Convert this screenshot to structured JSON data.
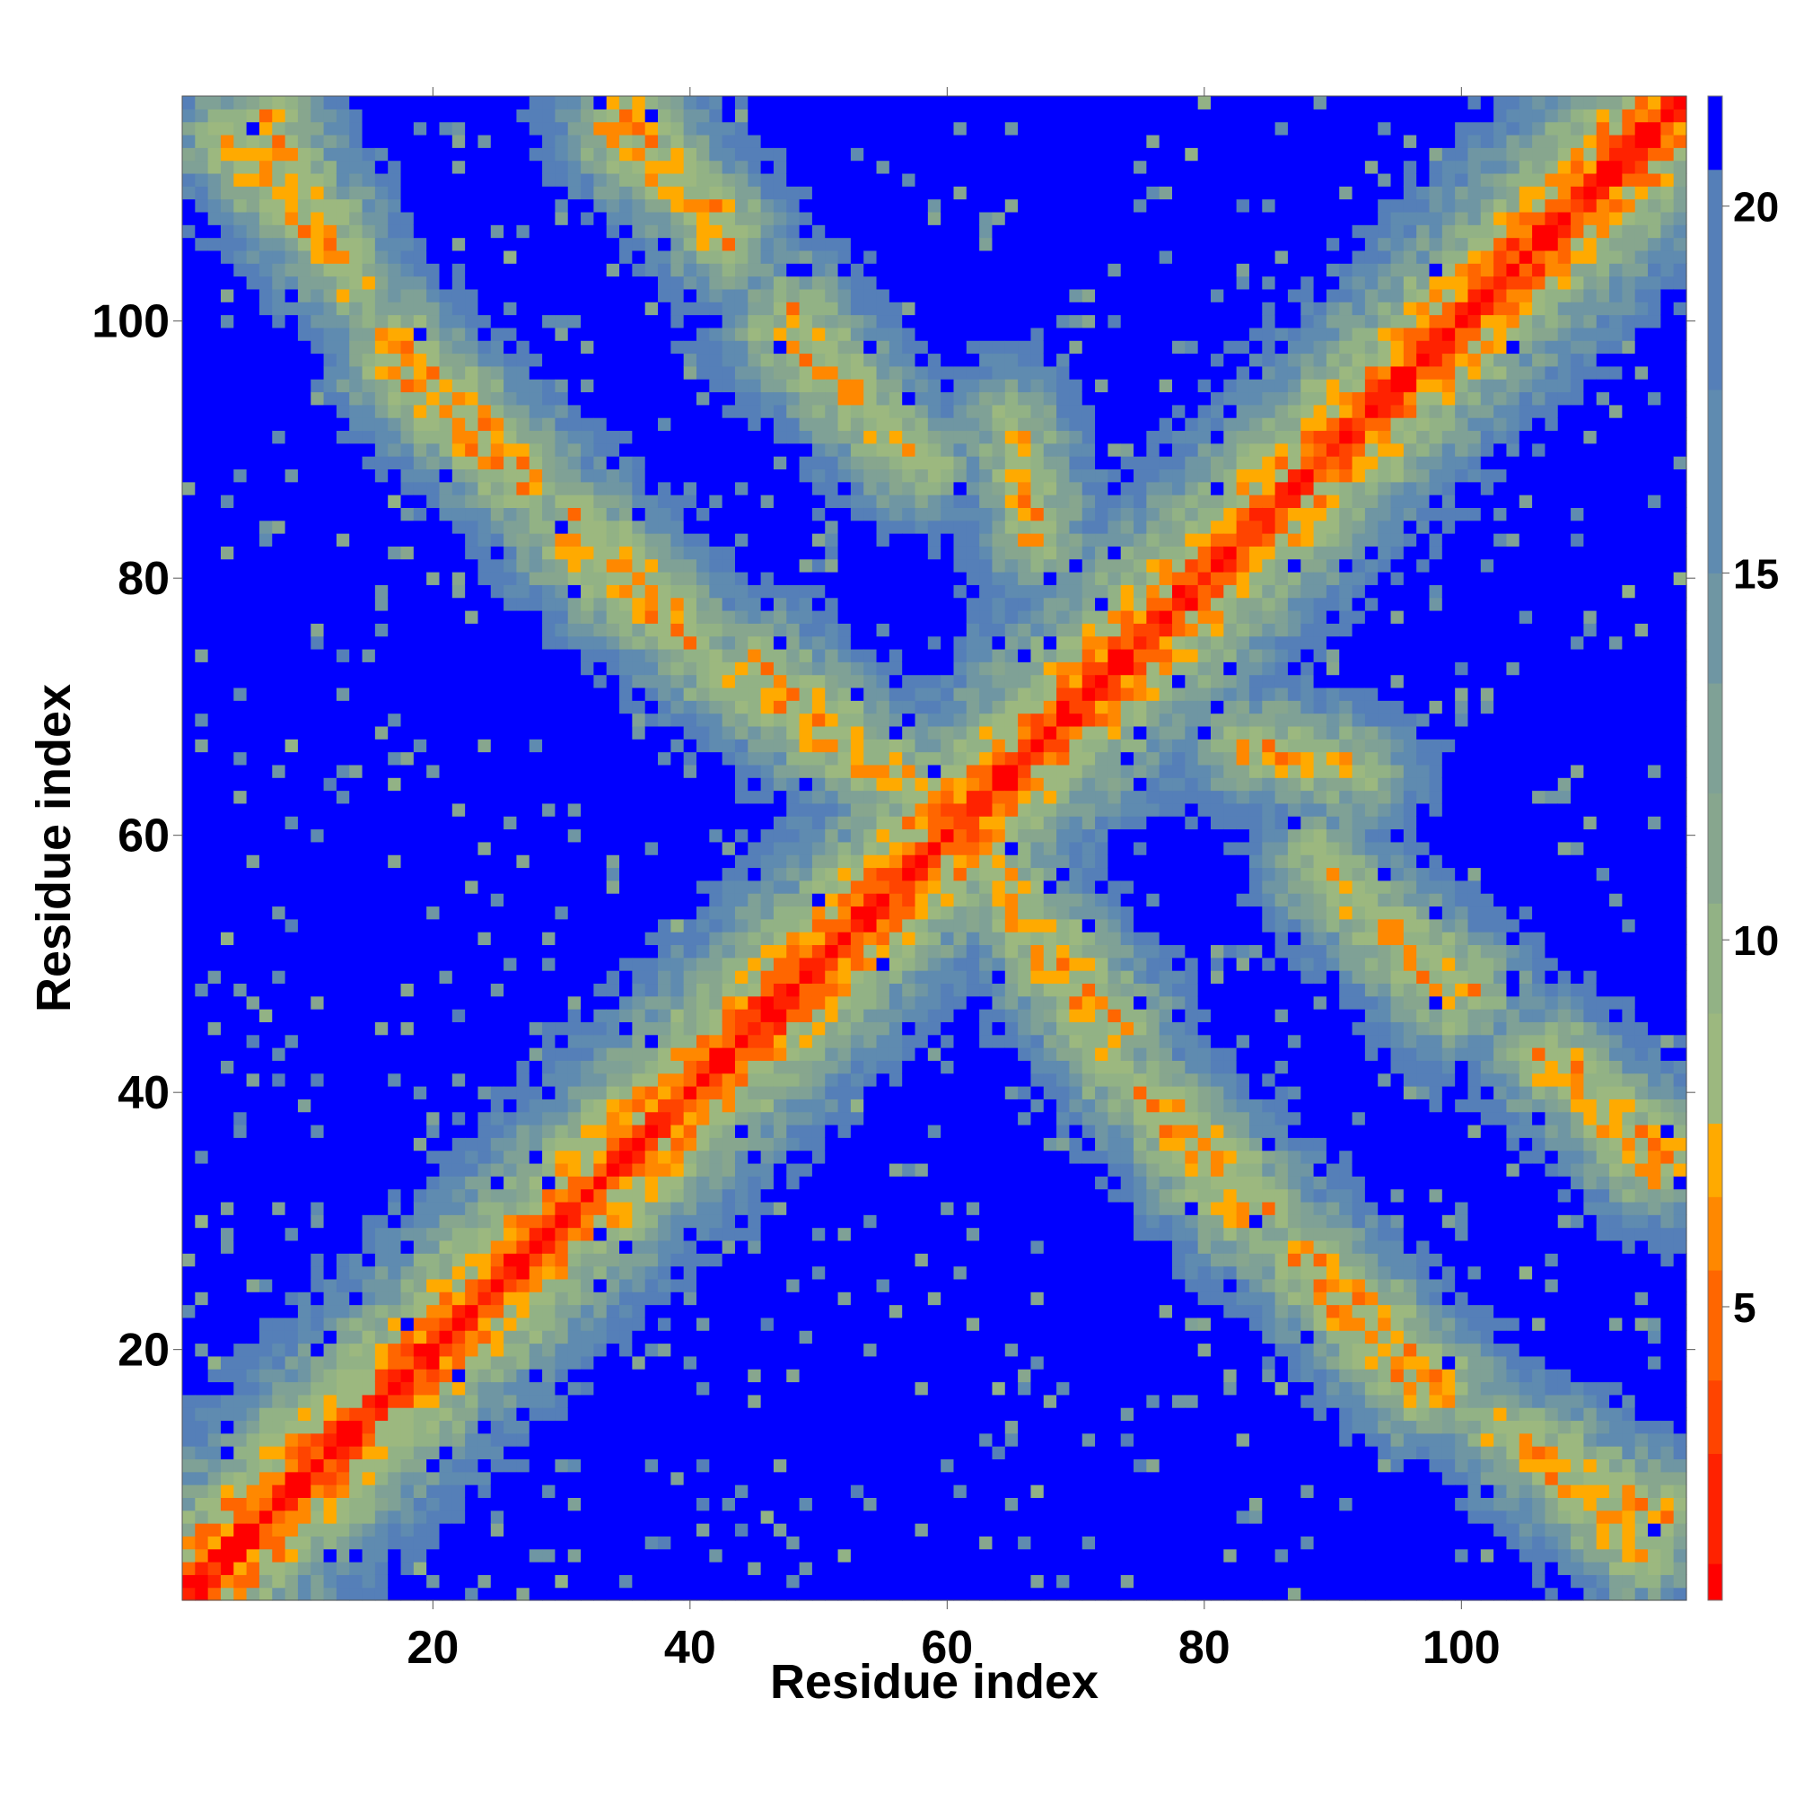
{
  "chart_data": {
    "type": "heatmap",
    "title": "",
    "xlabel": "Residue index",
    "ylabel": "Residue index",
    "n_residues": 117,
    "xlim": [
      1,
      117
    ],
    "ylim": [
      1,
      117
    ],
    "x_ticks": [
      20,
      40,
      60,
      80,
      100
    ],
    "y_ticks": [
      20,
      40,
      60,
      80,
      100
    ],
    "colorbar": {
      "ticks": [
        5,
        10,
        15,
        20
      ],
      "range": [
        1,
        21.5
      ],
      "colors": [
        "#ff0000",
        "#ff2200",
        "#ff4400",
        "#ff6600",
        "#ff8800",
        "#ffaa00",
        "#9cb87f",
        "#92b285",
        "#87a68e",
        "#7fa196",
        "#6f96a3",
        "#5f8bb0",
        "#557fb8",
        "#0000ff"
      ],
      "thresholds": [
        1.5,
        3,
        4,
        5.5,
        6.5,
        7.5,
        9,
        10.5,
        12,
        13.5,
        15,
        17.5,
        20.5
      ]
    },
    "secondary_diagonals": [
      {
        "from": [
          7,
          116
        ],
        "to": [
          14,
          103
        ]
      },
      {
        "from": [
          17,
          99
        ],
        "to": [
          28,
          88
        ]
      },
      {
        "from": [
          31,
          85
        ],
        "to": [
          39,
          77
        ]
      },
      {
        "from": [
          35,
          116
        ],
        "to": [
          43,
          107
        ]
      },
      {
        "from": [
          42,
          73
        ],
        "to": [
          59,
          62
        ]
      },
      {
        "from": [
          48,
          101
        ],
        "to": [
          56,
          90
        ]
      },
      {
        "from": [
          62,
          59
        ],
        "to": [
          74,
          45
        ]
      },
      {
        "from": [
          75,
          40
        ],
        "to": [
          83,
          30
        ]
      },
      {
        "from": [
          83,
          67
        ],
        "to": [
          92,
          65
        ]
      },
      {
        "from": [
          89,
          58
        ],
        "to": [
          99,
          47
        ]
      },
      {
        "from": [
          87,
          27
        ],
        "to": [
          96,
          17
        ]
      },
      {
        "from": [
          103,
          14
        ],
        "to": [
          114,
          4
        ]
      },
      {
        "from": [
          106,
          43
        ],
        "to": [
          115,
          34
        ]
      }
    ]
  }
}
